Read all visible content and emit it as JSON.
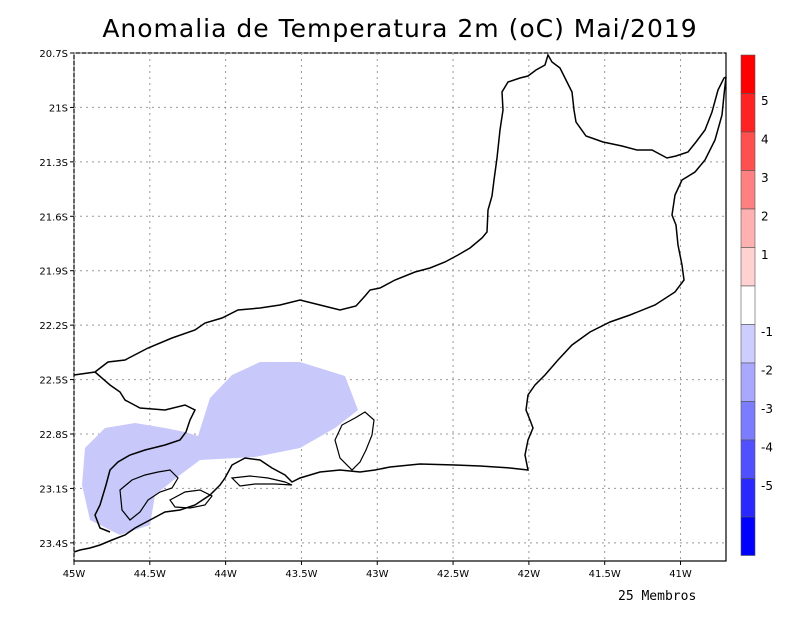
{
  "title": "Anomalia de Temperatura 2m (oC) Mai/2019",
  "footer": "25 Membros",
  "map": {
    "lon_ticks": [
      "45W",
      "44.5W",
      "44W",
      "43.5W",
      "43W",
      "42.5W",
      "42W",
      "41.5W",
      "41W"
    ],
    "lat_ticks": [
      "20.7S",
      "21S",
      "21.3S",
      "21.6S",
      "21.9S",
      "22.2S",
      "22.5S",
      "22.8S",
      "23.1S",
      "23.4S"
    ],
    "lon_range": [
      -45,
      -40.7
    ],
    "lat_range": [
      -23.5,
      -20.7
    ],
    "grid": "dotted",
    "outline_color": "#000000"
  },
  "colorbar": {
    "labels": [
      "5",
      "4",
      "3",
      "2",
      "1",
      "-1",
      "-2",
      "-3",
      "-4",
      "-5"
    ],
    "colors": [
      "#ff0000",
      "#ff2222",
      "#ff5050",
      "#ff8080",
      "#ffb0b0",
      "#ffd2d2",
      "#ffffff",
      "#cdcdff",
      "#a8a8ff",
      "#7c7cff",
      "#5050ff",
      "#2828ff",
      "#0000ff"
    ]
  },
  "anomaly_fill_color": "#c8c8fa"
}
